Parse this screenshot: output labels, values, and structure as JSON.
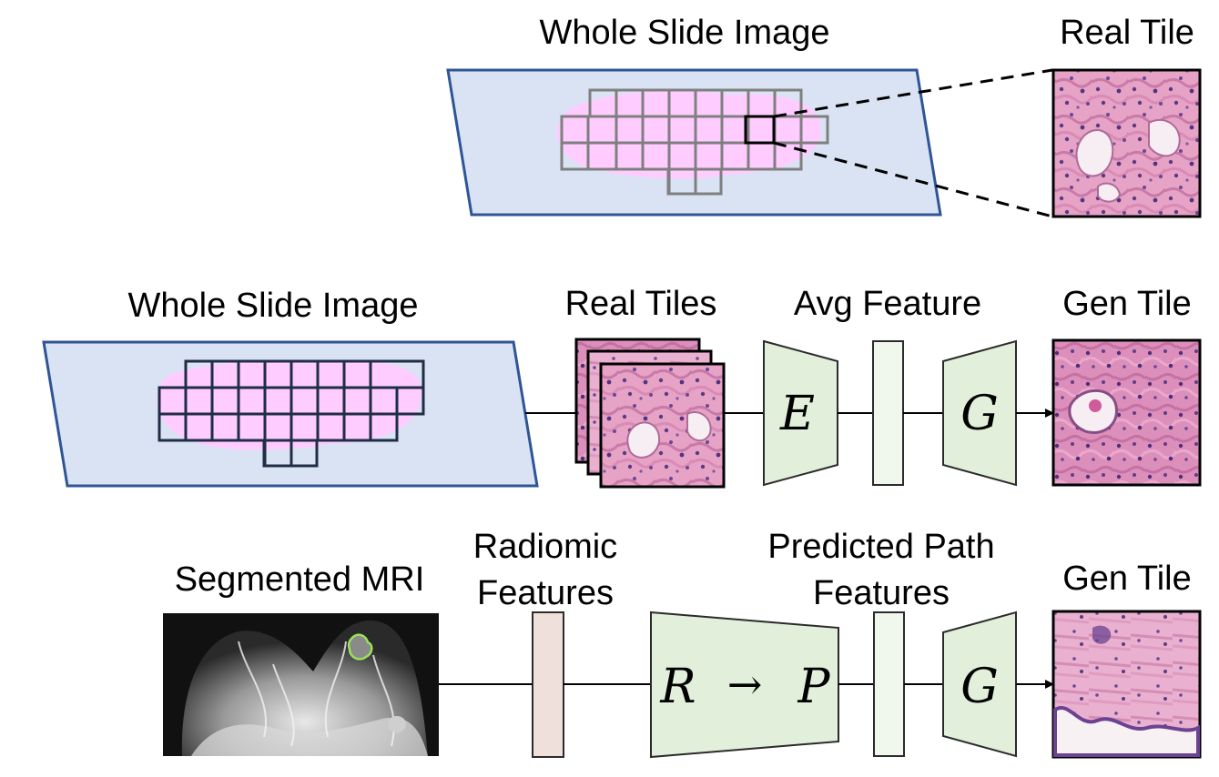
{
  "row1": {
    "wsi_label": "Whole Slide Image",
    "tile_label": "Real Tile"
  },
  "row2": {
    "wsi_label": "Whole Slide Image",
    "tiles_label": "Real Tiles",
    "feature_label": "Avg Feature",
    "encoder_symbol": "E",
    "generator_symbol": "G",
    "output_label": "Gen Tile"
  },
  "row3": {
    "mri_label": "Segmented MRI",
    "radiomic_label_line1": "Radiomic",
    "radiomic_label_line2": "Features",
    "mapper_symbol_left": "R",
    "mapper_arrow": "→",
    "mapper_symbol_right": "P",
    "predicted_label_line1": "Predicted Path",
    "predicted_label_line2": "Features",
    "generator_symbol": "G",
    "output_label": "Gen Tile"
  },
  "colors": {
    "slide_fill": "#dae3f3",
    "slide_border": "#2f5597",
    "tissue": "#ffccff",
    "grid_row1": "#7f7f7f",
    "grid_row2": "#1f2d45",
    "network_fill": "#e2efda",
    "feature_fill": "#f0f8ee",
    "radiomic_fill": "#f0e0dc",
    "he_pink": "#e59cc0",
    "he_purple": "#6b4390"
  }
}
